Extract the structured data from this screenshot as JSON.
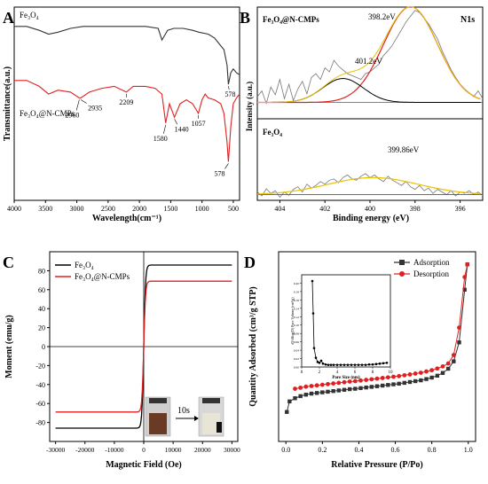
{
  "panels": [
    {
      "letter": "A",
      "type": "line",
      "xlabel": "Wavelength(cm⁻¹)",
      "ylabel": "Transmittance(a.u.)",
      "xlim": [
        4000,
        400
      ],
      "x_ticks": [
        4000,
        3500,
        3000,
        2500,
        2000,
        1500,
        1000,
        500
      ],
      "series": [
        {
          "name": "Fe₃O₄",
          "color": "#333333",
          "x": [
            4000,
            3800,
            3600,
            3450,
            3300,
            3100,
            2900,
            2700,
            2500,
            2300,
            2100,
            1900,
            1700,
            1640,
            1550,
            1450,
            1300,
            1150,
            1050,
            900,
            800,
            700,
            650,
            600,
            578,
            540,
            500,
            450,
            400
          ],
          "y": [
            0.9,
            0.9,
            0.88,
            0.86,
            0.87,
            0.89,
            0.9,
            0.9,
            0.9,
            0.9,
            0.9,
            0.9,
            0.89,
            0.83,
            0.88,
            0.89,
            0.89,
            0.88,
            0.87,
            0.86,
            0.84,
            0.8,
            0.78,
            0.7,
            0.6,
            0.66,
            0.68,
            0.66,
            0.65
          ]
        },
        {
          "name": "Fe₃O₄@N-CMPs",
          "color": "#e02020",
          "x": [
            4000,
            3800,
            3600,
            3450,
            3300,
            3100,
            2960,
            2935,
            2800,
            2600,
            2400,
            2209,
            2100,
            1900,
            1750,
            1640,
            1580,
            1520,
            1440,
            1350,
            1250,
            1150,
            1057,
            1000,
            950,
            900,
            800,
            700,
            650,
            600,
            578,
            540,
            500,
            450,
            400
          ],
          "y": [
            0.62,
            0.62,
            0.59,
            0.55,
            0.57,
            0.56,
            0.53,
            0.53,
            0.56,
            0.58,
            0.59,
            0.56,
            0.59,
            0.59,
            0.58,
            0.55,
            0.4,
            0.5,
            0.43,
            0.5,
            0.52,
            0.5,
            0.45,
            0.52,
            0.55,
            0.53,
            0.52,
            0.5,
            0.45,
            0.3,
            0.2,
            0.38,
            0.5,
            0.53,
            0.55
          ]
        }
      ],
      "annotations": [
        "2960",
        "2935",
        "2209",
        "1580",
        "1440",
        "1057",
        "578",
        "578"
      ],
      "legend_labels": [
        "Fe₃O₄",
        "Fe₃O₄@N-CMPs"
      ]
    },
    {
      "letter": "B",
      "type": "line",
      "xlabel": "Binding energy (eV)",
      "ylabel": "Intensity (a.u.)",
      "xlim": [
        405,
        395
      ],
      "x_ticks": [
        404,
        402,
        400,
        398,
        396
      ],
      "title_right": "N1s",
      "top_label": "Fe₃O₄@N-CMPs",
      "bottom_label": "Fe₃O₄",
      "peaks": {
        "top_main": {
          "label": "398.2eV",
          "center": 398.2,
          "height": 1.0
        },
        "top_minor": {
          "label": "401.2eV",
          "center": 401.2,
          "height": 0.25
        },
        "bottom": {
          "label": "399.86eV",
          "center": 399.86,
          "height": 0.35
        }
      },
      "noise_top": [
        0.12,
        0.18,
        0.05,
        0.22,
        0.14,
        0.3,
        0.1,
        0.25,
        0.08,
        0.2,
        0.28,
        0.15,
        0.32,
        0.36,
        0.3,
        0.42,
        0.38,
        0.5,
        0.44,
        0.4,
        0.36,
        0.34,
        0.32,
        0.3,
        0.36,
        0.38,
        0.42,
        0.46,
        0.55,
        0.6,
        0.66,
        0.74,
        0.82,
        0.9,
        0.96,
        1.02,
        1.0,
        0.94,
        0.88,
        0.8,
        0.72,
        0.6,
        0.5,
        0.4,
        0.32,
        0.25,
        0.2,
        0.16,
        0.12,
        0.18,
        0.1
      ],
      "noise_bottom": [
        0.1,
        0.04,
        0.15,
        0.08,
        0.12,
        0.02,
        0.1,
        0.05,
        0.14,
        0.18,
        0.1,
        0.22,
        0.16,
        0.2,
        0.26,
        0.22,
        0.28,
        0.3,
        0.24,
        0.32,
        0.36,
        0.3,
        0.28,
        0.34,
        0.38,
        0.32,
        0.36,
        0.3,
        0.26,
        0.34,
        0.28,
        0.24,
        0.2,
        0.26,
        0.18,
        0.14,
        0.2,
        0.12,
        0.16,
        0.08,
        0.14,
        0.1,
        0.06,
        0.12,
        0.04,
        0.1,
        0.08,
        0.12,
        0.06,
        0.1,
        0.05
      ]
    },
    {
      "letter": "C",
      "type": "line",
      "xlabel": "Magnetic Field (Oe)",
      "ylabel": "Moment (emu/g)",
      "xlim": [
        -32000,
        32000
      ],
      "ylim": [
        -100,
        100
      ],
      "x_ticks": [
        -30000,
        -20000,
        -10000,
        0,
        10000,
        20000,
        30000
      ],
      "y_ticks": [
        -80,
        -60,
        -40,
        -20,
        0,
        20,
        40,
        60,
        80
      ],
      "series": [
        {
          "name": "Fe₃O₄",
          "color": "#000000",
          "Ms": 86
        },
        {
          "name": "Fe₃O₄@N-CMPs",
          "color": "#e02020",
          "Ms": 69
        }
      ],
      "inset_label": "10s"
    },
    {
      "letter": "D",
      "type": "line",
      "xlabel": "Relative Pressure (P/Po)",
      "ylabel": "Quantity Adsorbed (cm³/g STP)",
      "xlim": [
        -0.04,
        1.04
      ],
      "ylim": [
        0,
        90
      ],
      "x_ticks": [
        0.0,
        0.2,
        0.4,
        0.6,
        0.8,
        1.0
      ],
      "series": [
        {
          "name": "Adsorption",
          "color": "#333333",
          "x": [
            0.005,
            0.02,
            0.05,
            0.08,
            0.11,
            0.14,
            0.17,
            0.2,
            0.23,
            0.26,
            0.29,
            0.32,
            0.35,
            0.38,
            0.41,
            0.44,
            0.47,
            0.5,
            0.53,
            0.56,
            0.59,
            0.62,
            0.65,
            0.68,
            0.71,
            0.74,
            0.77,
            0.8,
            0.83,
            0.86,
            0.89,
            0.92,
            0.95,
            0.98,
            0.995
          ],
          "y": [
            14,
            19,
            20.5,
            21.5,
            22.2,
            22.7,
            23.0,
            23.3,
            23.6,
            23.9,
            24.2,
            24.5,
            24.8,
            25.0,
            25.3,
            25.6,
            25.9,
            26.2,
            26.5,
            26.8,
            27.1,
            27.4,
            27.8,
            28.2,
            28.6,
            29.0,
            29.6,
            30.3,
            31.2,
            32.5,
            34.5,
            38,
            47,
            72,
            84
          ]
        },
        {
          "name": "Desorption",
          "color": "#e02020",
          "x": [
            0.05,
            0.08,
            0.11,
            0.14,
            0.17,
            0.2,
            0.23,
            0.26,
            0.29,
            0.32,
            0.35,
            0.38,
            0.41,
            0.44,
            0.47,
            0.5,
            0.53,
            0.56,
            0.59,
            0.62,
            0.65,
            0.68,
            0.71,
            0.74,
            0.77,
            0.8,
            0.83,
            0.86,
            0.89,
            0.92,
            0.95,
            0.98,
            0.995
          ],
          "y": [
            25,
            25.5,
            26.0,
            26.3,
            26.6,
            26.9,
            27.2,
            27.5,
            27.8,
            28.1,
            28.4,
            28.6,
            28.9,
            29.2,
            29.5,
            29.8,
            30.1,
            30.4,
            30.7,
            31.0,
            31.4,
            31.8,
            32.2,
            32.6,
            33.2,
            33.8,
            34.6,
            35.6,
            37,
            41,
            54,
            78,
            84
          ]
        }
      ],
      "inset": {
        "xlabel": "Pore Size (nm)",
        "ylabel": "dV/dlog(D) Pore Volume (cm³/g)",
        "xlim": [
          0,
          10
        ],
        "ylim": [
          0.0,
          0.22
        ],
        "x_ticks": [
          0,
          2,
          4,
          6,
          8,
          10
        ],
        "y_ticks": [
          0.0,
          0.02,
          0.04,
          0.06,
          0.08,
          0.1,
          0.12,
          0.14,
          0.16,
          0.18,
          0.2
        ],
        "x": [
          1.2,
          1.3,
          1.4,
          1.6,
          1.8,
          2.0,
          2.2,
          2.4,
          2.7,
          3.0,
          3.3,
          3.6,
          4.0,
          4.4,
          4.8,
          5.2,
          5.6,
          6.0,
          6.4,
          6.8,
          7.2,
          7.6,
          8.0,
          8.4,
          8.8,
          9.2,
          9.6
        ],
        "y": [
          0.205,
          0.128,
          0.045,
          0.022,
          0.012,
          0.01,
          0.015,
          0.008,
          0.006,
          0.005,
          0.005,
          0.005,
          0.005,
          0.005,
          0.005,
          0.005,
          0.005,
          0.005,
          0.005,
          0.005,
          0.005,
          0.006,
          0.006,
          0.007,
          0.008,
          0.009,
          0.01
        ]
      }
    }
  ]
}
